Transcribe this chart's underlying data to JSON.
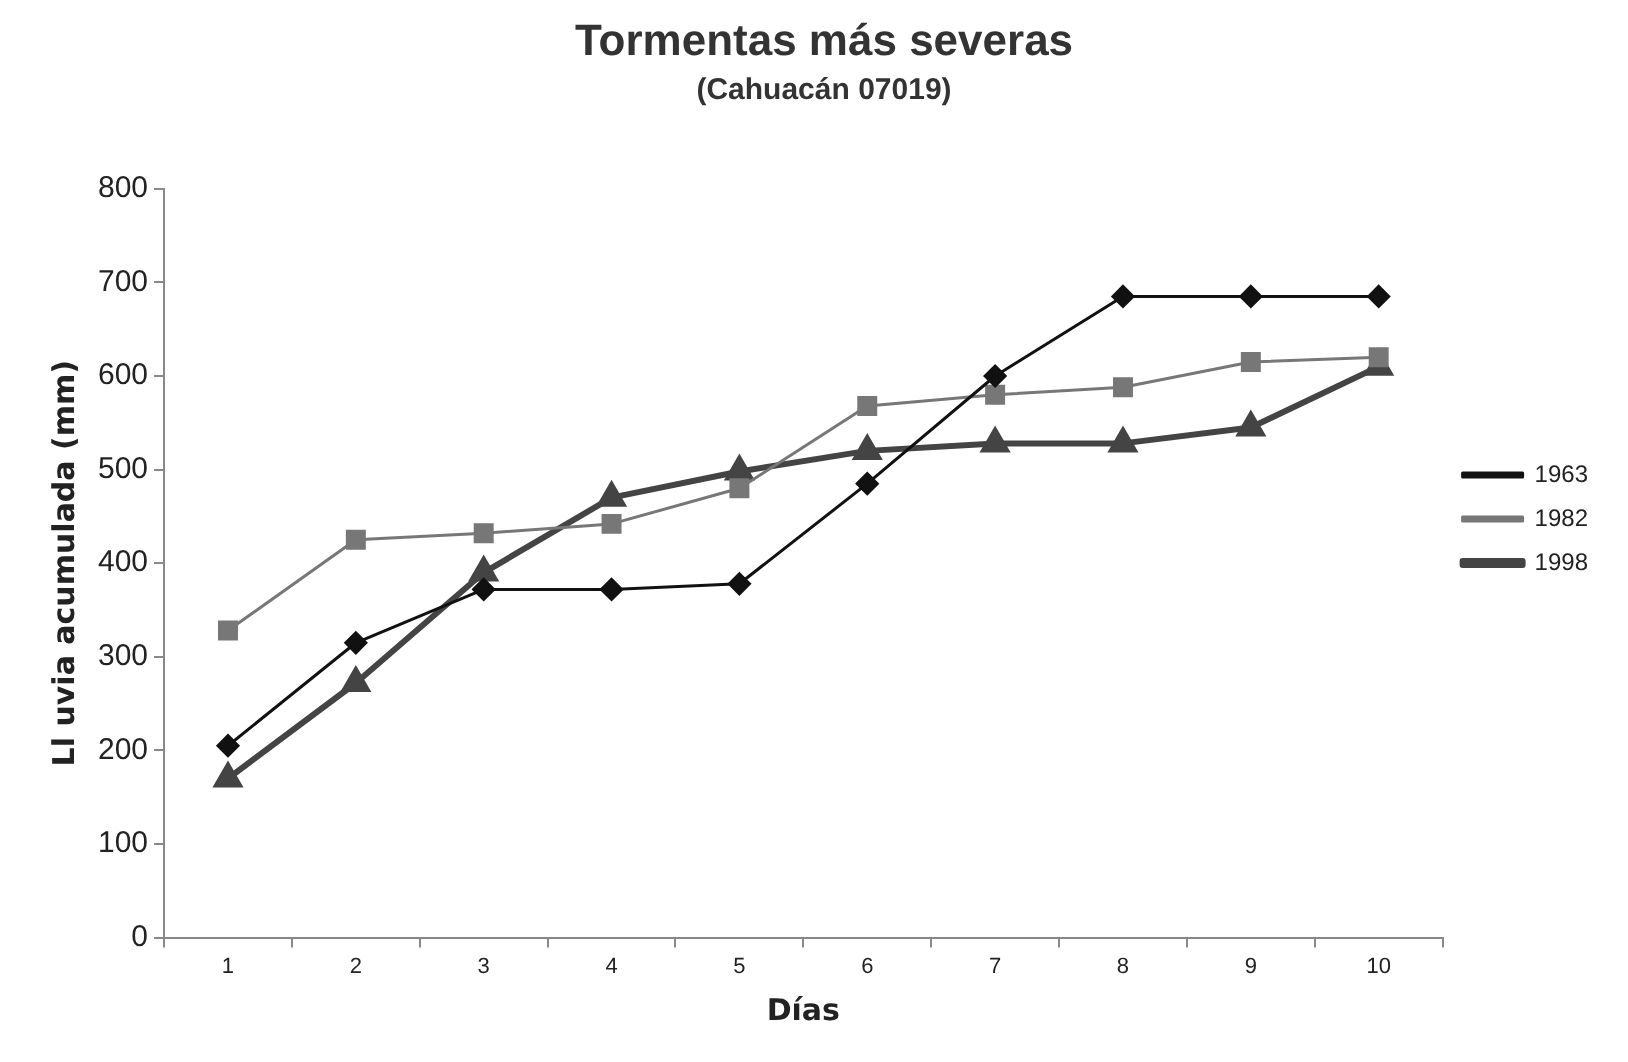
{
  "chart_data": {
    "type": "line",
    "title": "Tormentas más severas",
    "subtitle": "(Cahuacán 07019)",
    "xlabel": "Días",
    "ylabel": "Ll uvia acumulada (mm)",
    "categories": [
      "1",
      "2",
      "3",
      "4",
      "5",
      "6",
      "7",
      "8",
      "9",
      "10"
    ],
    "series": [
      {
        "name": "1963",
        "color": "#111111",
        "marker": "diamond",
        "values": [
          205,
          315,
          372,
          372,
          378,
          485,
          600,
          685,
          685,
          685
        ]
      },
      {
        "name": "1982",
        "color": "#777777",
        "marker": "square",
        "values": [
          328,
          425,
          432,
          442,
          480,
          568,
          580,
          588,
          615,
          620
        ]
      },
      {
        "name": "1998",
        "color": "#444444",
        "marker": "triangle",
        "values": [
          170,
          272,
          390,
          470,
          498,
          520,
          528,
          528,
          545,
          610
        ]
      }
    ],
    "ylim": [
      0,
      800
    ],
    "yticks": [
      0,
      100,
      200,
      300,
      400,
      500,
      600,
      700,
      800
    ],
    "grid": false,
    "legend": "right",
    "line_style": "solid"
  }
}
